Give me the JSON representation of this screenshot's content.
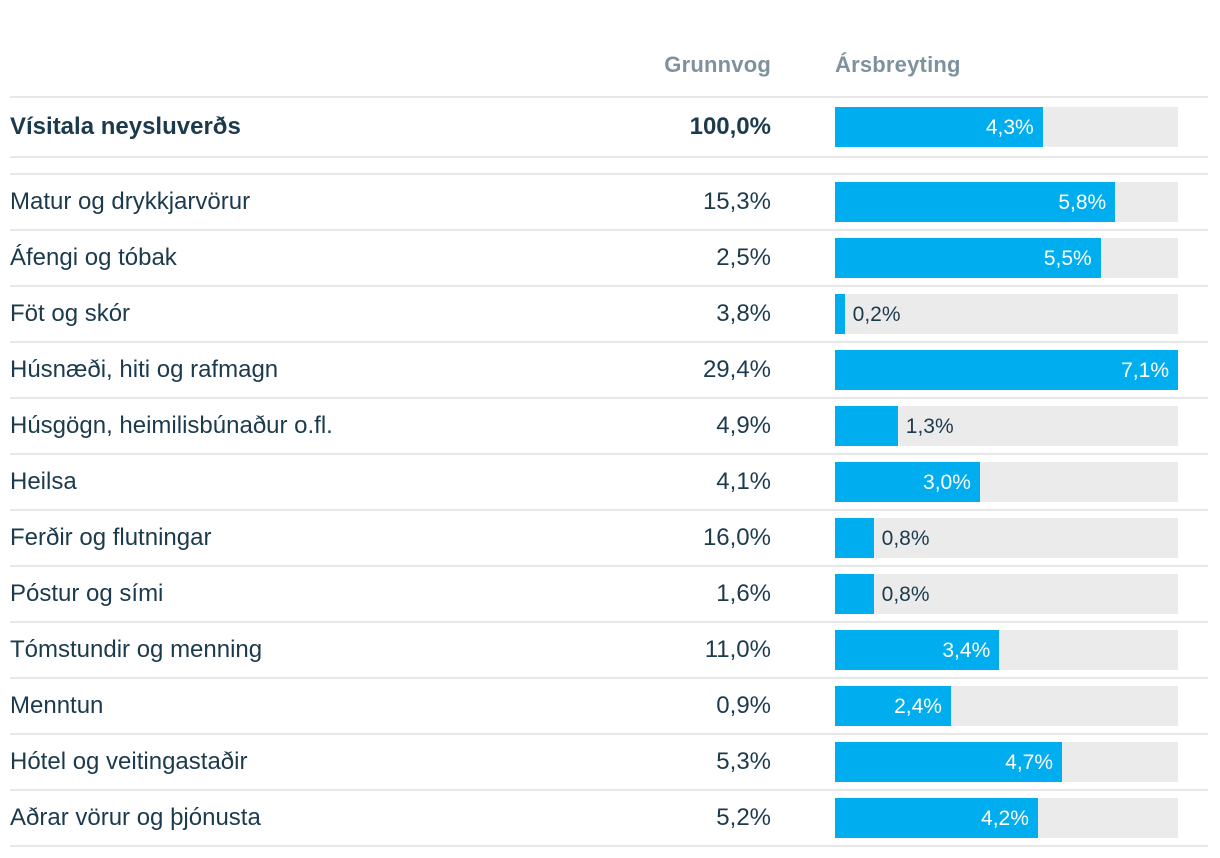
{
  "header": {
    "grunnvog": "Grunnvog",
    "arsbreyting": "Ársbreyting"
  },
  "total_row": {
    "label": "Vísitala neysluverðs",
    "weight": "100,0%",
    "value": 4.3,
    "value_label": "4,3%"
  },
  "rows": [
    {
      "label": "Matur og drykkjarvörur",
      "weight": "15,3%",
      "value": 5.8,
      "value_label": "5,8%"
    },
    {
      "label": "Áfengi og tóbak",
      "weight": "2,5%",
      "value": 5.5,
      "value_label": "5,5%"
    },
    {
      "label": "Föt og skór",
      "weight": "3,8%",
      "value": 0.2,
      "value_label": "0,2%"
    },
    {
      "label": "Húsnæði, hiti og rafmagn",
      "weight": "29,4%",
      "value": 7.1,
      "value_label": "7,1%"
    },
    {
      "label": "Húsgögn, heimilisbúnaður o.fl.",
      "weight": "4,9%",
      "value": 1.3,
      "value_label": "1,3%"
    },
    {
      "label": "Heilsa",
      "weight": "4,1%",
      "value": 3.0,
      "value_label": "3,0%"
    },
    {
      "label": "Ferðir og flutningar",
      "weight": "16,0%",
      "value": 0.8,
      "value_label": "0,8%"
    },
    {
      "label": "Póstur og sími",
      "weight": "1,6%",
      "value": 0.8,
      "value_label": "0,8%"
    },
    {
      "label": "Tómstundir og menning",
      "weight": "11,0%",
      "value": 3.4,
      "value_label": "3,4%"
    },
    {
      "label": "Menntun",
      "weight": "0,9%",
      "value": 2.4,
      "value_label": "2,4%"
    },
    {
      "label": "Hótel og veitingastaðir",
      "weight": "5,3%",
      "value": 4.7,
      "value_label": "4,7%"
    },
    {
      "label": "Aðrar vörur og þjónusta",
      "weight": "5,2%",
      "value": 4.2,
      "value_label": "4,2%"
    }
  ],
  "bar_scale": {
    "min": 0,
    "max": 7.1,
    "inside_label_threshold": 2.0
  },
  "colors": {
    "bar_fill": "#00aeef",
    "bar_track": "#ebebeb",
    "text_dark": "#1b3b4d",
    "header_text": "#7e929e",
    "divider": "#e7e7e7",
    "bar_label_inside": "#ffffff"
  },
  "chart_data": {
    "type": "bar",
    "orientation": "horizontal",
    "title": "",
    "categories": [
      "Vísitala neysluverðs",
      "Matur og drykkjarvörur",
      "Áfengi og tóbak",
      "Föt og skór",
      "Húsnæði, hiti og rafmagn",
      "Húsgögn, heimilisbúnaður o.fl.",
      "Heilsa",
      "Ferðir og flutningar",
      "Póstur og sími",
      "Tómstundir og menning",
      "Menntun",
      "Hótel og veitingastaðir",
      "Aðrar vörur og þjónusta"
    ],
    "series": [
      {
        "name": "Grunnvog",
        "values": [
          100.0,
          15.3,
          2.5,
          3.8,
          29.4,
          4.9,
          4.1,
          16.0,
          1.6,
          11.0,
          0.9,
          5.3,
          5.2
        ]
      },
      {
        "name": "Ársbreyting",
        "values": [
          4.3,
          5.8,
          5.5,
          0.2,
          7.1,
          1.3,
          3.0,
          0.8,
          0.8,
          3.4,
          2.4,
          4.7,
          4.2
        ]
      }
    ],
    "value_suffix": "%",
    "decimal_separator": ",",
    "xlim": [
      0,
      7.1
    ],
    "grid": false,
    "legend_position": "none"
  }
}
